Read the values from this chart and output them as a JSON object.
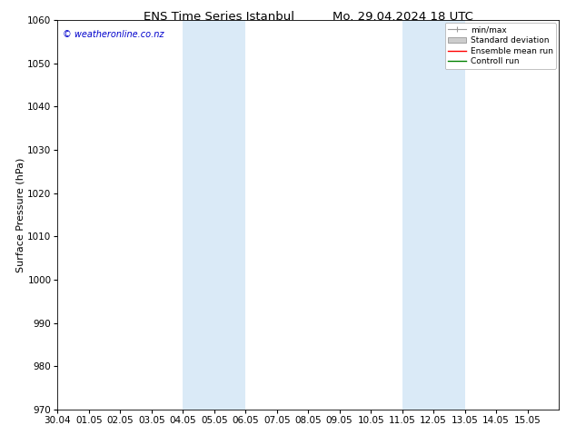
{
  "title_left": "ENS Time Series Istanbul",
  "title_right": "Mo. 29.04.2024 18 UTC",
  "ylabel": "Surface Pressure (hPa)",
  "ylim": [
    970,
    1060
  ],
  "yticks": [
    970,
    980,
    990,
    1000,
    1010,
    1020,
    1030,
    1040,
    1050,
    1060
  ],
  "xlim": [
    0,
    16
  ],
  "xtick_positions": [
    0,
    1,
    2,
    3,
    4,
    5,
    6,
    7,
    8,
    9,
    10,
    11,
    12,
    13,
    14,
    15
  ],
  "xtick_labels": [
    "30.04",
    "01.05",
    "02.05",
    "03.05",
    "04.05",
    "05.05",
    "06.05",
    "07.05",
    "08.05",
    "09.05",
    "10.05",
    "11.05",
    "12.05",
    "13.05",
    "14.05",
    "15.05"
  ],
  "weekend_bands": [
    {
      "xmin": 4,
      "xmax": 6
    },
    {
      "xmin": 11,
      "xmax": 13
    }
  ],
  "weekend_color": "#daeaf7",
  "watermark_text": "© weatheronline.co.nz",
  "watermark_color": "#0000cc",
  "legend_labels": [
    "min/max",
    "Standard deviation",
    "Ensemble mean run",
    "Controll run"
  ],
  "legend_colors": [
    "#999999",
    "#cccccc",
    "#ff0000",
    "#008000"
  ],
  "bg_color": "#ffffff",
  "axis_label_fontsize": 8,
  "tick_fontsize": 7.5,
  "title_fontsize": 9.5
}
